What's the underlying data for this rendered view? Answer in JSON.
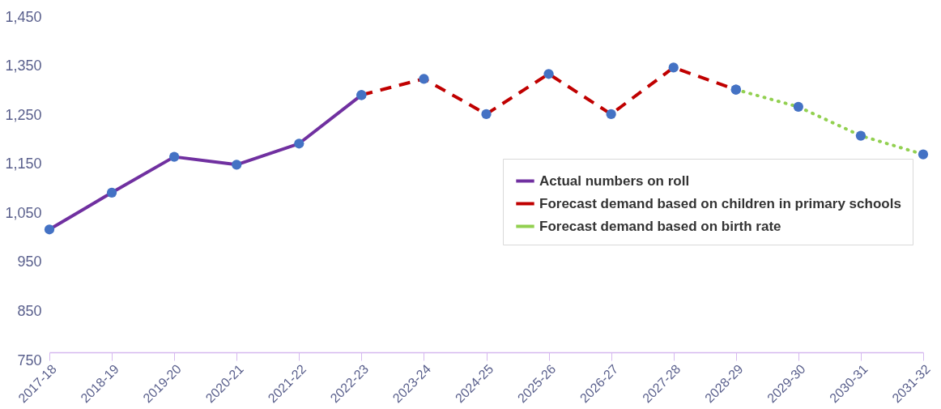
{
  "chart_data": {
    "type": "line",
    "categories": [
      "2017-18",
      "2018-19",
      "2019-20",
      "2020-21",
      "2021-22",
      "2022-23",
      "2023-24",
      "2024-25",
      "2025-26",
      "2026-27",
      "2027-28",
      "2028-29",
      "2029-30",
      "2030-31",
      "2031-32"
    ],
    "series": [
      {
        "name": "Actual numbers on roll",
        "color": "#7030a0",
        "line_style": "solid",
        "values": [
          1017,
          1092,
          1165,
          1149,
          1192,
          1291,
          null,
          null,
          null,
          null,
          null,
          null,
          null,
          null,
          null
        ]
      },
      {
        "name": "Forecast demand based on children in primary schools",
        "color": "#c00000",
        "line_style": "dashed",
        "values": [
          null,
          null,
          null,
          null,
          null,
          1291,
          1324,
          1252,
          1334,
          1252,
          1347,
          1302,
          null,
          null,
          null
        ]
      },
      {
        "name": "Forecast demand based on birth rate",
        "color": "#92d050",
        "line_style": "dotted",
        "values": [
          null,
          null,
          null,
          null,
          null,
          null,
          null,
          null,
          null,
          null,
          null,
          1302,
          1267,
          1208,
          1170
        ]
      }
    ],
    "ylim": [
      750,
      1450
    ],
    "yticks": [
      750,
      850,
      950,
      {
        "value": 1050,
        "label": "1,050"
      },
      {
        "value": 1150,
        "label": "1,150"
      },
      {
        "value": 1250,
        "label": "1,250"
      },
      {
        "value": 1350,
        "label": "1,350"
      },
      {
        "value": 1450,
        "label": "1,450"
      }
    ],
    "marker": "circle",
    "legend": "right",
    "grid": false
  }
}
